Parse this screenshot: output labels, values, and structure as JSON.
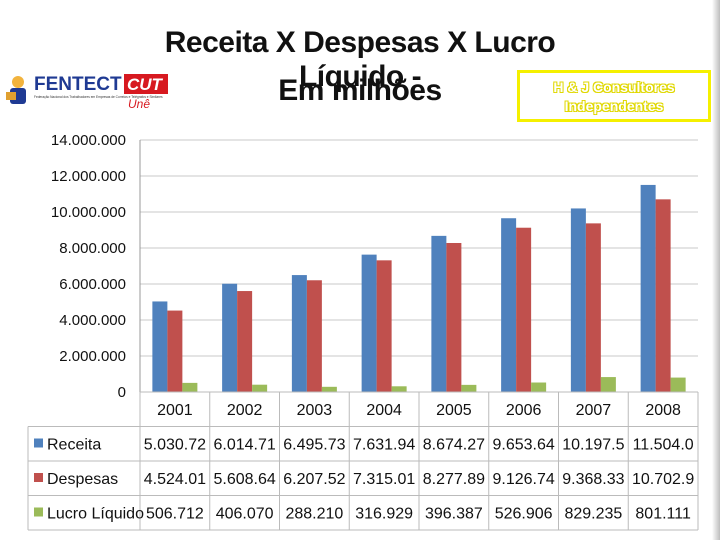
{
  "header": {
    "title_line1": "Receita X Despesas X Lucro Líquido -",
    "title_line2": "Em milhões",
    "logo_fentect": "FENTECT",
    "logo_fentect_sub": "Federação Nacional dos Trabalhadores em Empresas de Correios e Telégrafos e Similares",
    "logo_cut": "CUT",
    "logo_cut_sub": "Unê",
    "consultant_line1": "H & J Consultores",
    "consultant_line2": "Independentes"
  },
  "colors": {
    "receita": "#4f81bd",
    "despesas": "#c0504d",
    "lucro": "#9bbb59",
    "cut_red": "#d71920",
    "fentect_blue": "#1f3a93",
    "highlight_border": "#f5f000"
  },
  "chart_data": {
    "type": "bar",
    "categories": [
      "2001",
      "2002",
      "2003",
      "2004",
      "2005",
      "2006",
      "2007",
      "2008"
    ],
    "ylim": [
      0,
      14000000
    ],
    "yticks": [
      0,
      2000000,
      4000000,
      6000000,
      8000000,
      10000000,
      12000000,
      14000000
    ],
    "ytick_labels": [
      "0",
      "2.000.000",
      "4.000.000",
      "6.000.000",
      "8.000.000",
      "10.000.000",
      "12.000.000",
      "14.000.000"
    ],
    "grid": true,
    "series": [
      {
        "name": "Receita",
        "color": "#4f81bd",
        "values": [
          5030720,
          6014710,
          6495730,
          7631940,
          8674270,
          9653640,
          10197500,
          11504000
        ],
        "table_labels": [
          "5.030.72",
          "6.014.71",
          "6.495.73",
          "7.631.94",
          "8.674.27",
          "9.653.64",
          "10.197.5",
          "11.504.0"
        ]
      },
      {
        "name": "Despesas",
        "color": "#c0504d",
        "values": [
          4524010,
          5608640,
          6207520,
          7315010,
          8277890,
          9126740,
          9368330,
          10702900
        ],
        "table_labels": [
          "4.524.01",
          "5.608.64",
          "6.207.52",
          "7.315.01",
          "8.277.89",
          "9.126.74",
          "9.368.33",
          "10.702.9"
        ]
      },
      {
        "name": "Lucro Líquido",
        "color": "#9bbb59",
        "values": [
          506712,
          406070,
          288210,
          316929,
          396387,
          526906,
          829235,
          801111
        ],
        "table_labels": [
          "506.712",
          "406.070",
          "288.210",
          "316.929",
          "396.387",
          "526.906",
          "829.235",
          "801.111"
        ]
      }
    ]
  }
}
